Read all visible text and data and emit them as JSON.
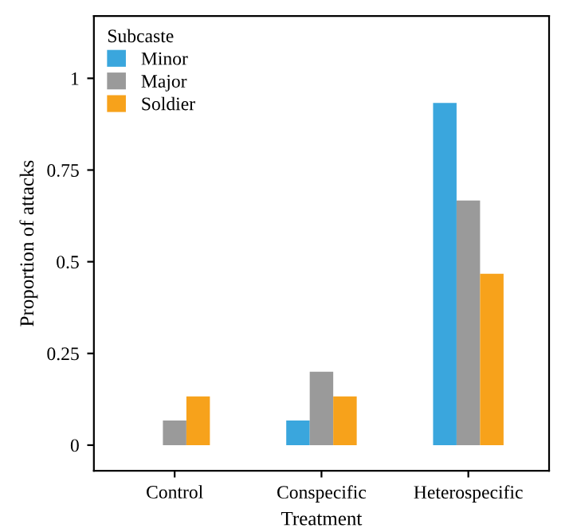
{
  "chart_data": {
    "type": "bar",
    "xlabel": "Treatment",
    "ylabel": "Proportion of attacks",
    "legend_title": "Subcaste",
    "legend": "top left",
    "grid": false,
    "categories": [
      "Control",
      "Conspecific",
      "Heterospecific"
    ],
    "series": [
      {
        "name": "Minor",
        "color": "#3aa6dd",
        "values": [
          0,
          0.067,
          0.933
        ]
      },
      {
        "name": "Major",
        "color": "#9a9a9a",
        "values": [
          0.067,
          0.2,
          0.667
        ]
      },
      {
        "name": "Soldier",
        "color": "#f7a21b",
        "values": [
          0.133,
          0.133,
          0.467
        ]
      }
    ],
    "ylim": [
      -0.07,
      1.17
    ],
    "yticks": [
      0,
      0.25,
      0.5,
      0.75,
      1
    ]
  }
}
